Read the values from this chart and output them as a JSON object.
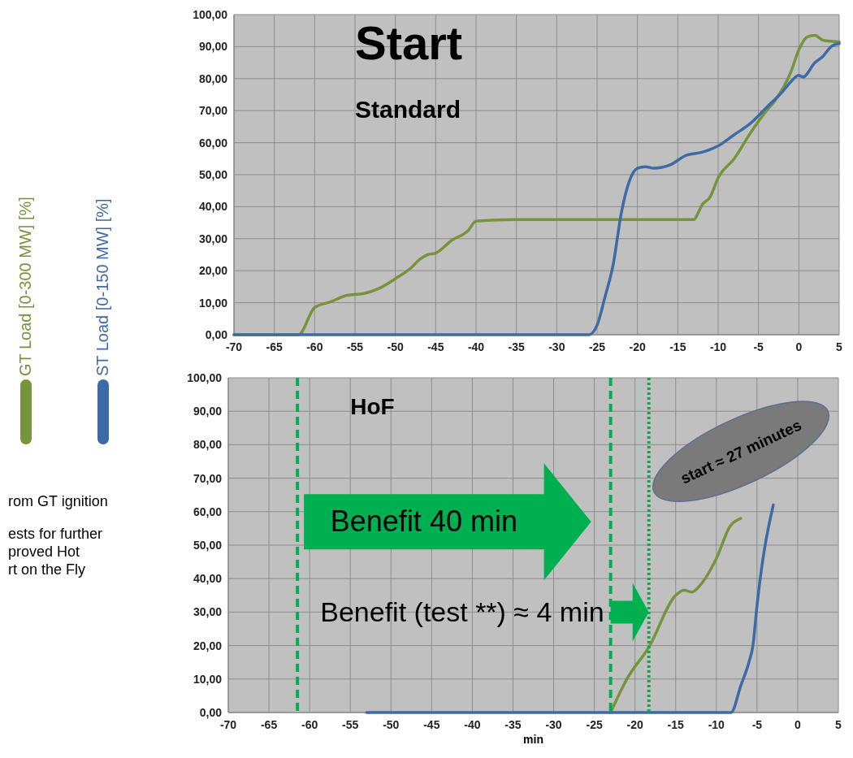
{
  "chart_data": [
    {
      "type": "line",
      "title": "Start",
      "subtitle": "Standard",
      "legend": "left",
      "grid": true,
      "line_style": "solid",
      "marker": "none",
      "xlim": [
        -70,
        5
      ],
      "xticks": [
        -70,
        -65,
        -60,
        -55,
        -50,
        -45,
        -40,
        -35,
        -30,
        -25,
        -20,
        -15,
        -10,
        -5,
        0,
        5
      ],
      "ylim": [
        0,
        100
      ],
      "yticks": [
        {
          "value": 0,
          "label": "0,00"
        },
        {
          "value": 10,
          "label": "10,00"
        },
        {
          "value": 20,
          "label": "20,00"
        },
        {
          "value": 30,
          "label": "30,00"
        },
        {
          "value": 40,
          "label": "40,00"
        },
        {
          "value": 50,
          "label": "50,00"
        },
        {
          "value": 60,
          "label": "60,00"
        },
        {
          "value": 70,
          "label": "70,00"
        },
        {
          "value": 80,
          "label": "80,00"
        },
        {
          "value": 90,
          "label": "90,00"
        },
        {
          "value": 100,
          "label": "100,00"
        }
      ],
      "series": [
        {
          "name": "GT Load [0-300 MW] [%]",
          "color": "#77933c",
          "x": [
            -70,
            -62,
            -60,
            -58,
            -56,
            -54,
            -52,
            -50,
            -48,
            -47,
            -46,
            -45,
            -43,
            -41,
            -40,
            -38,
            -35,
            -13,
            -12.5,
            -12,
            -11,
            -10,
            -8,
            -6,
            -4,
            -3,
            -1,
            0,
            1,
            2,
            3,
            5
          ],
          "values": [
            0,
            0,
            8.5,
            10.3,
            12.3,
            12.8,
            14.5,
            17.5,
            21,
            23.5,
            25,
            25.5,
            29.5,
            32.5,
            35.5,
            35.8,
            36,
            36,
            38,
            40.5,
            43,
            49,
            55,
            63,
            70,
            73,
            82,
            89,
            93,
            93.5,
            92,
            91.5
          ]
        },
        {
          "name": "ST Load [0-150 MW] [%]",
          "color": "#3e6aa5",
          "x": [
            -70,
            -26,
            -25,
            -24,
            -23,
            -22,
            -21,
            -20,
            -19,
            -18,
            -16,
            -14,
            -12,
            -10,
            -8,
            -6,
            -4,
            -2,
            -1,
            0,
            0.5,
            2,
            3,
            4,
            5
          ],
          "values": [
            0,
            0,
            3,
            12,
            22,
            38,
            48,
            52,
            52.5,
            52,
            53,
            56,
            57,
            59,
            62.5,
            66,
            71,
            76,
            79,
            81,
            80.5,
            85,
            87,
            90,
            91
          ]
        }
      ]
    },
    {
      "type": "line",
      "title": "HoF",
      "xlabel": "min",
      "legend": false,
      "grid": true,
      "line_style": "solid",
      "marker": "none",
      "xlim": [
        -70,
        5
      ],
      "xticks": [
        -70,
        -65,
        -60,
        -55,
        -50,
        -45,
        -40,
        -35,
        -30,
        -25,
        -20,
        -15,
        -10,
        -5,
        0,
        5
      ],
      "ylim": [
        0,
        100
      ],
      "yticks": [
        {
          "value": 0,
          "label": "0,00"
        },
        {
          "value": 10,
          "label": "10,00"
        },
        {
          "value": 20,
          "label": "20,00"
        },
        {
          "value": 30,
          "label": "30,00"
        },
        {
          "value": 40,
          "label": "40,00"
        },
        {
          "value": 50,
          "label": "50,00"
        },
        {
          "value": 60,
          "label": "60,00"
        },
        {
          "value": 70,
          "label": "70,00"
        },
        {
          "value": 80,
          "label": "80,00"
        },
        {
          "value": 90,
          "label": "90,00"
        },
        {
          "value": 100,
          "label": "100,00"
        }
      ],
      "series": [
        {
          "color": "#77933c",
          "x": [
            -23,
            -21,
            -18.3,
            -15,
            -14,
            -13,
            -12,
            -10,
            -8.3,
            -7
          ],
          "values": [
            0,
            10,
            19.5,
            35,
            36.5,
            36,
            38,
            46,
            55.7,
            58
          ]
        },
        {
          "color": "#3e6aa5",
          "x": [
            -53,
            -8.2,
            -7,
            -6,
            -5.5,
            -5,
            -4.5,
            -4,
            -3
          ],
          "values": [
            0,
            0,
            8,
            15,
            20,
            32,
            42,
            50,
            62
          ]
        }
      ],
      "ref_lines": [
        {
          "axis": "x",
          "value": -61.5,
          "color": "#00b050",
          "line_style": "dashed"
        },
        {
          "axis": "x",
          "value": -23,
          "color": "#00b050",
          "line_style": "dashed"
        },
        {
          "axis": "x",
          "value": -18.3,
          "color": "#00b050",
          "line_style": "dotted"
        }
      ],
      "annotations": [
        "Benefit 40 min",
        "Benefit (test **) ≈ 4 min",
        "start ≈ 27 minutes",
        "rom GT ignition",
        "ests for further\nproved Hot\nrt on the Fly"
      ]
    }
  ]
}
